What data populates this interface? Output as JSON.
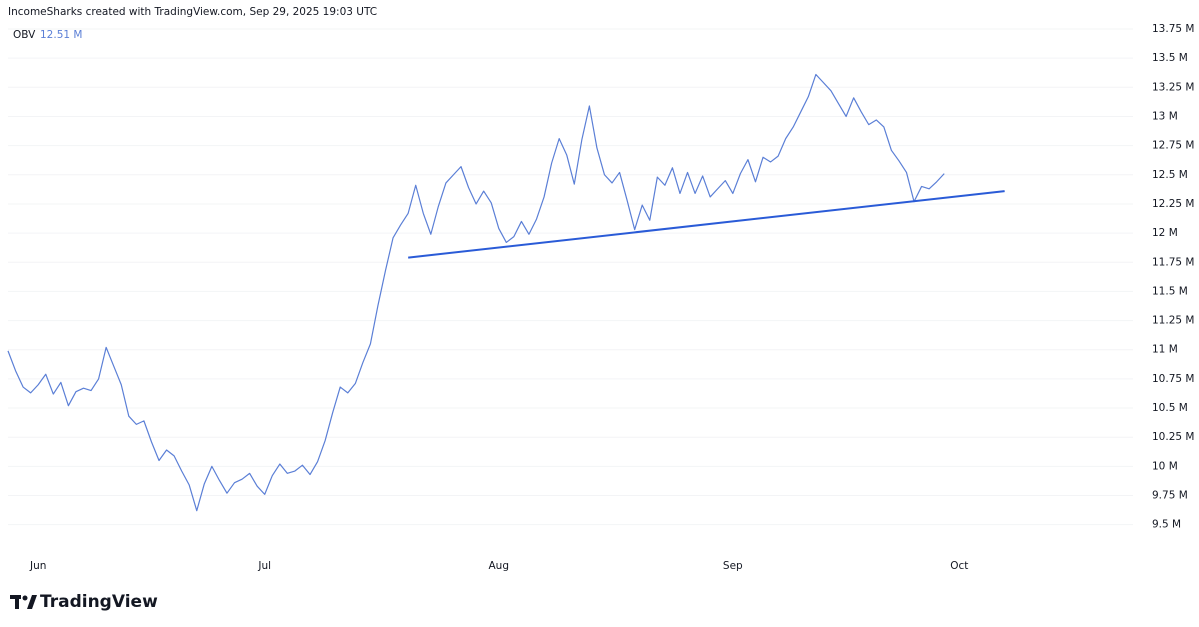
{
  "header": "IncomeSharks created with TradingView.com, Sep 29, 2025 19:03 UTC",
  "logo": "TradingView",
  "chart_data": {
    "type": "line",
    "categories": [
      null,
      null,
      null,
      null,
      "Jun",
      null,
      null,
      null,
      null,
      null,
      null,
      null,
      null,
      null,
      null,
      null,
      null,
      null,
      null,
      null,
      null,
      null,
      null,
      null,
      null,
      null,
      null,
      null,
      null,
      null,
      null,
      null,
      null,
      null,
      "Jul",
      null,
      null,
      null,
      null,
      null,
      null,
      null,
      null,
      null,
      null,
      null,
      null,
      null,
      null,
      null,
      null,
      null,
      null,
      null,
      null,
      null,
      null,
      null,
      null,
      null,
      null,
      null,
      null,
      null,
      null,
      "Aug",
      null,
      null,
      null,
      null,
      null,
      null,
      null,
      null,
      null,
      null,
      null,
      null,
      null,
      null,
      null,
      null,
      null,
      null,
      null,
      null,
      null,
      null,
      null,
      null,
      null,
      null,
      null,
      null,
      null,
      null,
      "Sep",
      null,
      null,
      null,
      null,
      null,
      null,
      null,
      null,
      null,
      null,
      null,
      null,
      null,
      null,
      null,
      null,
      null,
      null,
      null,
      null,
      null,
      null,
      null,
      null,
      null,
      null,
      null,
      null,
      null,
      "Oct"
    ],
    "series": [
      {
        "name": "OBV",
        "color": "#5b7fd6",
        "values": [
          10.99,
          10.82,
          10.68,
          10.63,
          10.7,
          10.79,
          10.62,
          10.72,
          10.52,
          10.64,
          10.67,
          10.65,
          10.75,
          11.02,
          10.86,
          10.7,
          10.43,
          10.36,
          10.39,
          10.21,
          10.05,
          10.14,
          10.09,
          9.96,
          9.84,
          9.62,
          9.85,
          10.0,
          9.88,
          9.77,
          9.86,
          9.89,
          9.94,
          9.83,
          9.76,
          9.92,
          10.02,
          9.94,
          9.96,
          10.01,
          9.93,
          10.04,
          10.22,
          10.46,
          10.68,
          10.63,
          10.71,
          10.89,
          11.05,
          11.38,
          11.68,
          11.96,
          12.07,
          12.17,
          12.41,
          12.17,
          11.99,
          12.23,
          12.43,
          12.5,
          12.57,
          12.39,
          12.25,
          12.36,
          12.26,
          12.04,
          11.92,
          11.97,
          12.1,
          11.99,
          12.12,
          12.31,
          12.6,
          12.81,
          12.67,
          12.42,
          12.8,
          13.09,
          12.73,
          12.5,
          12.43,
          12.52,
          12.28,
          12.03,
          12.24,
          12.11,
          12.48,
          12.41,
          12.56,
          12.34,
          12.52,
          12.34,
          12.49,
          12.31,
          12.38,
          12.45,
          12.34,
          12.51,
          12.63,
          12.44,
          12.65,
          12.61,
          12.66,
          12.81,
          12.91,
          13.04,
          13.17,
          13.36,
          13.29,
          13.22,
          13.11,
          13.0,
          13.16,
          13.04,
          12.93,
          12.97,
          12.91,
          12.71,
          12.62,
          12.52,
          12.27,
          12.4,
          12.38,
          12.44,
          12.51,
          null,
          null
        ]
      }
    ],
    "legend_value": {
      "value": 12.51,
      "label": "12.51 M"
    },
    "trendline": {
      "x": [
        53,
        132
      ],
      "y": [
        11.79,
        12.36
      ],
      "color": "#2a5bd7"
    },
    "xlim": [
      0,
      149
    ],
    "ylim": [
      9.3,
      13.87
    ],
    "yticks": [
      {
        "value": 9.5,
        "label": "9.5 M"
      },
      {
        "value": 9.75,
        "label": "9.75 M"
      },
      {
        "value": 10,
        "label": "10 M"
      },
      {
        "value": 10.25,
        "label": "10.25 M"
      },
      {
        "value": 10.5,
        "label": "10.5 M"
      },
      {
        "value": 10.75,
        "label": "10.75 M"
      },
      {
        "value": 11,
        "label": "11 M"
      },
      {
        "value": 11.25,
        "label": "11.25 M"
      },
      {
        "value": 11.5,
        "label": "11.5 M"
      },
      {
        "value": 11.75,
        "label": "11.75 M"
      },
      {
        "value": 12,
        "label": "12 M"
      },
      {
        "value": 12.25,
        "label": "12.25 M"
      },
      {
        "value": 12.5,
        "label": "12.5 M"
      },
      {
        "value": 12.75,
        "label": "12.75 M"
      },
      {
        "value": 13,
        "label": "13 M"
      },
      {
        "value": 13.25,
        "label": "13.25 M"
      },
      {
        "value": 13.5,
        "label": "13.5 M"
      },
      {
        "value": 13.75,
        "label": "13.75 M"
      }
    ],
    "grid": true
  }
}
